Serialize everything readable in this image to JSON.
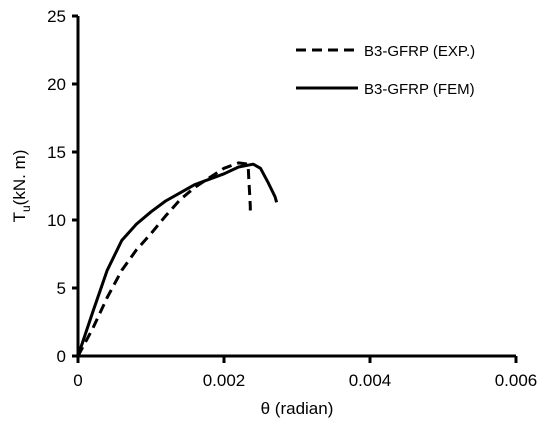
{
  "chart_data": {
    "type": "line",
    "xlabel": "θ (radian)",
    "ylabel_main": "T",
    "ylabel_sub": "u",
    "ylabel_rest": "(kN. m)",
    "xlim": [
      0,
      0.006
    ],
    "ylim": [
      0,
      25
    ],
    "x_ticks": [
      0,
      0.002,
      0.004,
      0.006
    ],
    "x_tick_labels": [
      "0",
      "0.002",
      "0.004",
      "0.006"
    ],
    "y_ticks": [
      0,
      5,
      10,
      15,
      20,
      25
    ],
    "y_tick_labels": [
      "0",
      "5",
      "10",
      "15",
      "20",
      "25"
    ],
    "grid": false,
    "legend_position": "top-right",
    "series": [
      {
        "name": "B3-GFRP (EXP.)",
        "style": "dashed",
        "color": "#000000",
        "points": [
          [
            0,
            0
          ],
          [
            0.0002,
            2.0
          ],
          [
            0.0004,
            4.3
          ],
          [
            0.0006,
            6.3
          ],
          [
            0.0008,
            7.8
          ],
          [
            0.001,
            9.0
          ],
          [
            0.0012,
            10.3
          ],
          [
            0.0014,
            11.5
          ],
          [
            0.0016,
            12.4
          ],
          [
            0.0018,
            13.1
          ],
          [
            0.002,
            13.8
          ],
          [
            0.0022,
            14.2
          ],
          [
            0.00233,
            14.1
          ],
          [
            0.00234,
            13.0
          ],
          [
            0.00235,
            12.0
          ],
          [
            0.00236,
            11.0
          ],
          [
            0.00236,
            10.7
          ]
        ]
      },
      {
        "name": "B3-GFRP (FEM)",
        "style": "solid",
        "color": "#000000",
        "points": [
          [
            0,
            0
          ],
          [
            0.0002,
            3.2
          ],
          [
            0.0004,
            6.3
          ],
          [
            0.0006,
            8.5
          ],
          [
            0.0008,
            9.7
          ],
          [
            0.001,
            10.6
          ],
          [
            0.0012,
            11.4
          ],
          [
            0.0014,
            12.0
          ],
          [
            0.0016,
            12.6
          ],
          [
            0.0018,
            13.0
          ],
          [
            0.002,
            13.4
          ],
          [
            0.0022,
            13.9
          ],
          [
            0.0024,
            14.1
          ],
          [
            0.0025,
            13.8
          ],
          [
            0.0026,
            12.8
          ],
          [
            0.0027,
            11.7
          ],
          [
            0.00272,
            11.3
          ]
        ]
      }
    ]
  }
}
